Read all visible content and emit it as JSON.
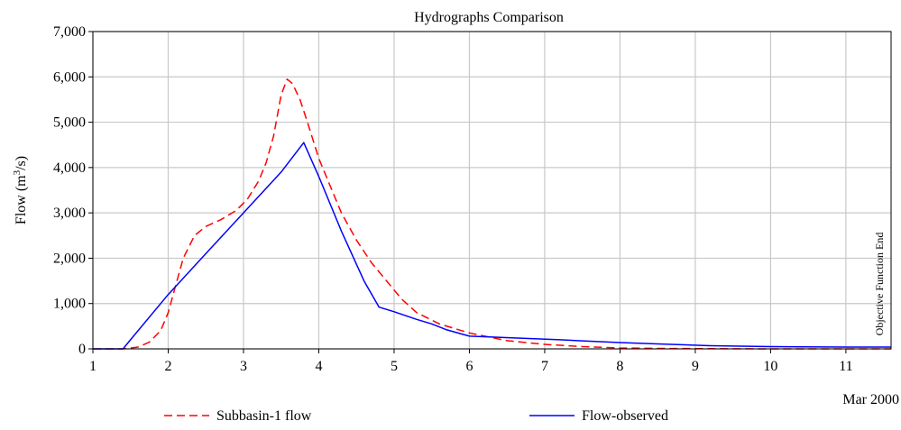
{
  "chart_data": {
    "type": "line",
    "title": "Hydrographs Comparison",
    "ylabel": {
      "prefix": "Flow (m",
      "sup": "3",
      "suffix": "/s)"
    },
    "xlabel": "Mar 2000",
    "xlim": [
      1,
      11.6
    ],
    "ylim": [
      0,
      7000
    ],
    "x_ticks": [
      "1",
      "2",
      "3",
      "4",
      "5",
      "6",
      "7",
      "8",
      "9",
      "10",
      "11"
    ],
    "y_ticks": [
      "0",
      "1,000",
      "2,000",
      "3,000",
      "4,000",
      "5,000",
      "6,000",
      "7,000"
    ],
    "grid": true,
    "legend_position": "bottom",
    "annotation": "Objective Function End",
    "series": [
      {
        "name": "Subbasin-1 flow",
        "color": "#ff0000",
        "style": "dashed",
        "x": [
          1.0,
          1.4,
          1.6,
          1.75,
          1.9,
          2.0,
          2.1,
          2.2,
          2.35,
          2.5,
          2.7,
          2.9,
          3.05,
          3.2,
          3.3,
          3.4,
          3.5,
          3.58,
          3.65,
          3.75,
          3.85,
          4.0,
          4.15,
          4.3,
          4.5,
          4.7,
          4.9,
          5.1,
          5.3,
          5.6,
          6.0,
          6.5,
          7.0,
          7.5,
          8.0,
          8.5,
          9.0,
          10.0,
          11.0,
          11.6
        ],
        "y": [
          0,
          0,
          40,
          150,
          400,
          800,
          1400,
          2000,
          2500,
          2700,
          2850,
          3050,
          3300,
          3700,
          4100,
          4700,
          5600,
          5950,
          5850,
          5500,
          5000,
          4200,
          3600,
          3000,
          2400,
          1900,
          1500,
          1100,
          800,
          550,
          350,
          180,
          100,
          50,
          20,
          10,
          5,
          0,
          0,
          0
        ]
      },
      {
        "name": "Flow-observed",
        "color": "#0000ff",
        "style": "solid",
        "x": [
          1.0,
          1.4,
          1.5,
          2.0,
          2.5,
          3.0,
          3.5,
          3.8,
          4.0,
          4.3,
          4.6,
          4.8,
          5.0,
          5.3,
          5.5,
          5.7,
          6.0,
          6.3,
          6.6,
          6.9,
          7.2,
          7.6,
          8.0,
          8.5,
          9.2,
          10.0,
          11.0,
          11.6
        ],
        "y": [
          0,
          0,
          200,
          1200,
          2100,
          3000,
          3900,
          4550,
          3800,
          2600,
          1500,
          920,
          820,
          650,
          550,
          420,
          280,
          260,
          240,
          220,
          200,
          170,
          140,
          110,
          70,
          50,
          40,
          40
        ]
      }
    ]
  }
}
